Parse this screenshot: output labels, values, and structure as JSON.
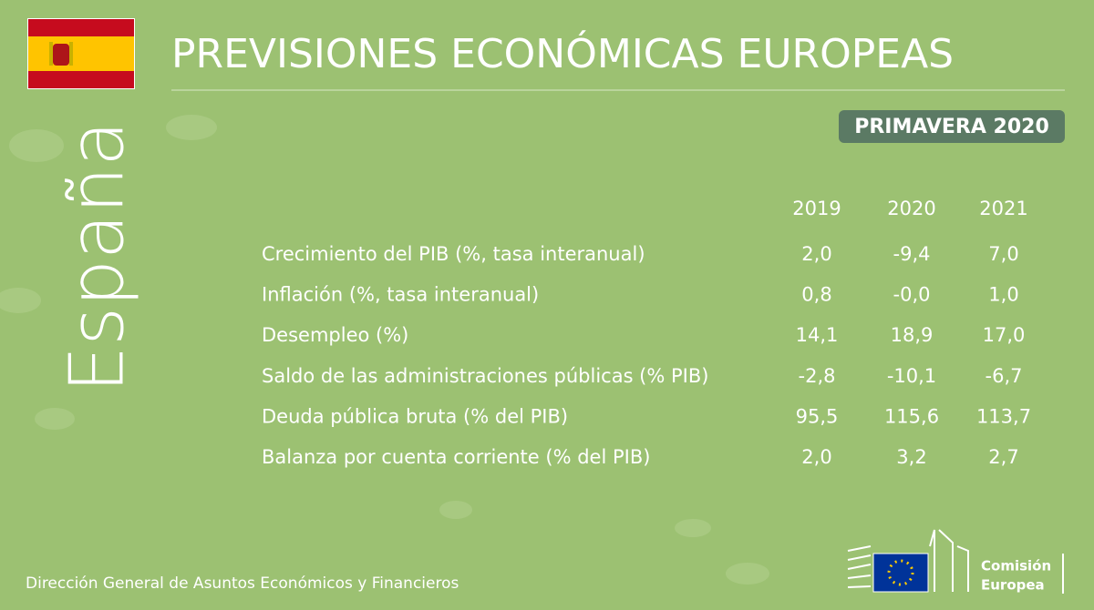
{
  "header": {
    "title": "PREVISIONES ECONÓMICAS EUROPEAS",
    "badge": "PRIMAVERA 2020"
  },
  "country": "España",
  "table": {
    "columns": [
      "2019",
      "2020",
      "2021"
    ],
    "rows": [
      {
        "label": "Crecimiento del PIB (%, tasa interanual)",
        "values": [
          "2,0",
          "-9,4",
          "7,0"
        ]
      },
      {
        "label": "Inflación (%, tasa interanual)",
        "values": [
          "0,8",
          "-0,0",
          "1,0"
        ]
      },
      {
        "label": "Desempleo (%)",
        "values": [
          "14,1",
          "18,9",
          "17,0"
        ]
      },
      {
        "label": "Saldo de las administraciones públicas (% PIB)",
        "values": [
          "-2,8",
          "-10,1",
          "-6,7"
        ]
      },
      {
        "label": "Deuda pública bruta (% del PIB)",
        "values": [
          "95,5",
          "115,6",
          "113,7"
        ]
      },
      {
        "label": "Balanza por cuenta corriente (% del PIB)",
        "values": [
          "2,0",
          "3,2",
          "2,7"
        ]
      }
    ]
  },
  "footer": {
    "text": "Dirección General de Asuntos Económicos y Financieros",
    "logo": [
      "Comisión",
      "Europea"
    ]
  }
}
